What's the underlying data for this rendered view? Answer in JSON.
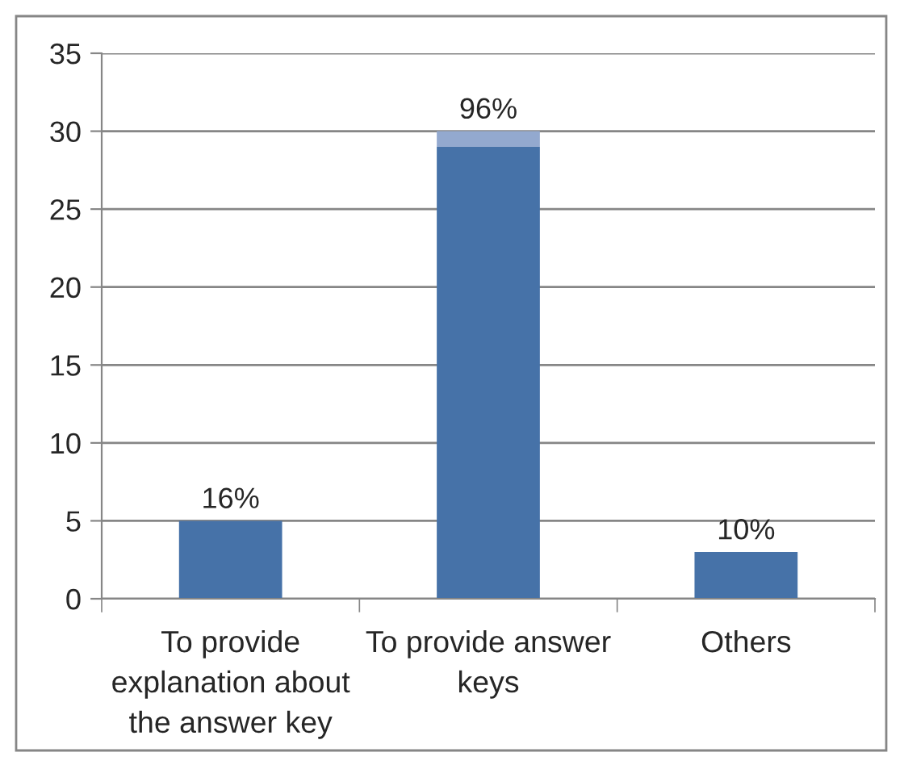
{
  "chart_data": {
    "type": "bar",
    "stacked": true,
    "categories": [
      "To provide explanation about the answer key",
      "To provide answer keys",
      "Others"
    ],
    "series": [
      {
        "color": "#4672a8",
        "values": [
          5,
          29,
          3
        ]
      },
      {
        "color": "#93a9cf",
        "values": [
          null,
          1,
          null
        ]
      }
    ],
    "ylim": [
      0,
      35
    ],
    "yticks": [
      0,
      5,
      10,
      15,
      20,
      25,
      30,
      35
    ],
    "grid": "y",
    "annotations": [
      {
        "text": "16%",
        "x": "To provide explanation about the answer key",
        "y": 5
      },
      {
        "text": "96%",
        "x": "To provide answer keys",
        "y": 30
      },
      {
        "text": "10%",
        "x": "Others",
        "y": 3
      }
    ]
  }
}
